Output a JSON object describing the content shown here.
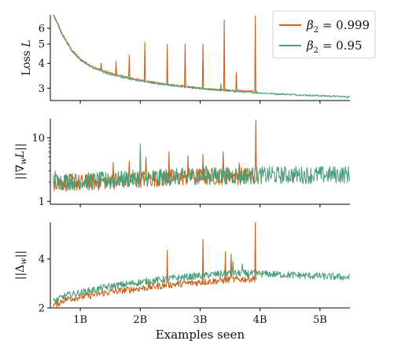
{
  "colors": {
    "beta_0999": "#c8641e",
    "beta_095": "#4c9e78"
  },
  "chart_data": [
    {
      "type": "line",
      "ylabel": "Loss L",
      "ylabel_parts": [
        "Loss ",
        "L"
      ],
      "yscale": "log",
      "ylim": [
        2.6,
        7.0
      ],
      "yticks": [
        3,
        4,
        5,
        6
      ],
      "ytick_labels": [
        "3",
        "4",
        "5",
        "6"
      ],
      "xlim": [
        0.5,
        5.5
      ],
      "legend": {
        "placement": "top-right",
        "entries": [
          {
            "prefix": "β",
            "sub": "2",
            "value": " = 0.999",
            "color": "#c8641e"
          },
          {
            "prefix": "β",
            "sub": "2",
            "value": " = 0.95",
            "color": "#4c9e78"
          }
        ]
      },
      "series": [
        {
          "name": "β2 = 0.999",
          "color": "#c8641e",
          "x": [
            0.55,
            0.7,
            0.85,
            1.0,
            1.2,
            1.4,
            1.6,
            1.8,
            2.0,
            2.25,
            2.5,
            2.75,
            3.0,
            3.25,
            3.5,
            3.75,
            3.94
          ],
          "y": [
            7.0,
            5.6,
            4.7,
            4.2,
            3.85,
            3.65,
            3.5,
            3.4,
            3.3,
            3.2,
            3.12,
            3.06,
            3.0,
            2.96,
            2.93,
            2.9,
            2.89
          ],
          "spikes": [
            {
              "x": 1.35,
              "y": 4.0
            },
            {
              "x": 1.6,
              "y": 4.1
            },
            {
              "x": 1.82,
              "y": 4.4
            },
            {
              "x": 2.08,
              "y": 5.1
            },
            {
              "x": 2.45,
              "y": 5.0
            },
            {
              "x": 2.75,
              "y": 5.0
            },
            {
              "x": 3.05,
              "y": 5.0
            },
            {
              "x": 3.4,
              "y": 6.6
            },
            {
              "x": 3.6,
              "y": 3.6
            },
            {
              "x": 3.92,
              "y": 6.9
            }
          ]
        },
        {
          "name": "β2 = 0.95",
          "color": "#4c9e78",
          "x": [
            0.55,
            0.7,
            0.85,
            1.0,
            1.2,
            1.4,
            1.6,
            1.8,
            2.0,
            2.25,
            2.5,
            2.75,
            3.0,
            3.25,
            3.5,
            3.75,
            4.0,
            4.25,
            4.5,
            4.75,
            5.0,
            5.25,
            5.5
          ],
          "y": [
            7.0,
            5.55,
            4.65,
            4.15,
            3.8,
            3.6,
            3.46,
            3.36,
            3.27,
            3.17,
            3.1,
            3.04,
            2.98,
            2.94,
            2.9,
            2.87,
            2.84,
            2.81,
            2.79,
            2.77,
            2.75,
            2.73,
            2.71
          ],
          "spikes": [
            {
              "x": 3.35,
              "y": 3.15
            },
            {
              "x": 1.1,
              "y": 4.05
            }
          ]
        }
      ]
    },
    {
      "type": "line",
      "ylabel": "||∇wL||",
      "ylabel_parts": [
        "||∇",
        "w",
        "L||"
      ],
      "yscale": "log",
      "ylim": [
        0.9,
        20
      ],
      "yticks": [
        1,
        10
      ],
      "ytick_labels": [
        "1",
        "10"
      ],
      "xlim": [
        0.5,
        5.5
      ],
      "series": [
        {
          "name": "β2 = 0.999",
          "color": "#c8641e",
          "x": [
            0.55,
            1.0,
            1.5,
            2.0,
            2.5,
            3.0,
            3.5,
            3.94
          ],
          "y": [
            2.0,
            1.95,
            2.1,
            2.25,
            2.35,
            2.45,
            2.5,
            2.5
          ],
          "spikes": [
            {
              "x": 0.58,
              "y": 3.0
            },
            {
              "x": 1.55,
              "y": 4.1
            },
            {
              "x": 1.82,
              "y": 4.3
            },
            {
              "x": 2.1,
              "y": 5.0
            },
            {
              "x": 2.48,
              "y": 6.0
            },
            {
              "x": 2.8,
              "y": 5.2
            },
            {
              "x": 3.05,
              "y": 5.5
            },
            {
              "x": 3.38,
              "y": 6.0
            },
            {
              "x": 3.65,
              "y": 4.0
            },
            {
              "x": 3.93,
              "y": 19.0
            },
            {
              "x": 3.95,
              "y": 0.9
            }
          ]
        },
        {
          "name": "β2 = 0.95",
          "color": "#4c9e78",
          "x": [
            0.55,
            1.0,
            1.5,
            2.0,
            2.5,
            3.0,
            3.5,
            4.0,
            4.5,
            5.0,
            5.5
          ],
          "y": [
            2.1,
            2.05,
            2.15,
            2.3,
            2.4,
            2.5,
            2.55,
            2.55,
            2.6,
            2.6,
            2.65
          ],
          "spikes": [
            {
              "x": 2.0,
              "y": 8.0
            },
            {
              "x": 3.1,
              "y": 3.6
            },
            {
              "x": 4.2,
              "y": 3.5
            }
          ]
        }
      ]
    },
    {
      "type": "line",
      "ylabel": "||Δw||",
      "ylabel_parts": [
        "||Δ",
        "w",
        "||"
      ],
      "yscale": "linear",
      "ylim": [
        2.0,
        5.5
      ],
      "yticks": [
        2,
        4
      ],
      "ytick_labels": [
        "2",
        "4"
      ],
      "xlim": [
        0.5,
        5.5
      ],
      "xticks": [
        1,
        2,
        3,
        4,
        5
      ],
      "xtick_labels": [
        "1B",
        "2B",
        "3B",
        "4B",
        "5B"
      ],
      "xlabel": "Examples seen",
      "series": [
        {
          "name": "β2 = 0.999",
          "color": "#c8641e",
          "x": [
            0.55,
            0.75,
            1.0,
            1.5,
            2.0,
            2.5,
            3.0,
            3.5,
            3.94
          ],
          "y": [
            2.1,
            2.35,
            2.45,
            2.65,
            2.8,
            2.95,
            3.05,
            3.15,
            3.2
          ],
          "spikes": [
            {
              "x": 2.45,
              "y": 4.35
            },
            {
              "x": 3.05,
              "y": 4.8
            },
            {
              "x": 3.42,
              "y": 4.3
            },
            {
              "x": 3.52,
              "y": 4.2
            },
            {
              "x": 3.92,
              "y": 5.5
            },
            {
              "x": 3.95,
              "y": 2.0
            }
          ]
        },
        {
          "name": "β2 = 0.95",
          "color": "#4c9e78",
          "x": [
            0.55,
            0.75,
            1.0,
            1.5,
            2.0,
            2.5,
            3.0,
            3.5,
            4.0,
            4.5,
            5.0,
            5.5
          ],
          "y": [
            2.25,
            2.5,
            2.62,
            2.88,
            3.05,
            3.2,
            3.32,
            3.42,
            3.4,
            3.35,
            3.3,
            3.25
          ],
          "spikes": [
            {
              "x": 3.55,
              "y": 3.9
            },
            {
              "x": 3.7,
              "y": 3.8
            }
          ]
        }
      ]
    }
  ]
}
